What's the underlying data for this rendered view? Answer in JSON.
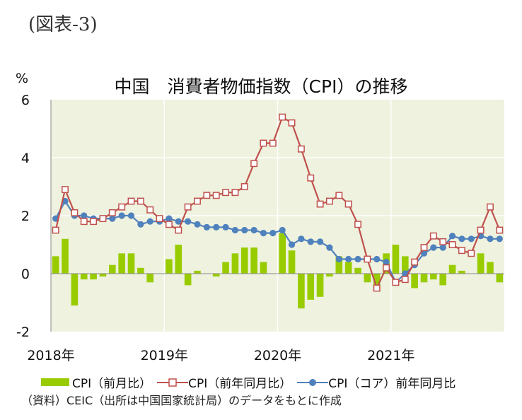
{
  "figure_label": "(図表-3)",
  "unit_label": "%",
  "legend": {
    "bar": "CPI（前月比）",
    "line1": "CPI（前年同月比）",
    "line2": "CPI（コア）前年同月比"
  },
  "source": "（資料）CEIC（出所は中国国家統計局）のデータをもとに作成",
  "colors": {
    "plot_bg": "#eef2de",
    "bar": "#99cc00",
    "line_headline": "#c0504d",
    "line_core": "#4f81bd",
    "grid": "#ffffff"
  },
  "chart_data": {
    "type": "bar+line",
    "title": "中国　消費者物価指数（CPI）の推移",
    "ylim": [
      -2,
      6
    ],
    "yticks": [
      "-2",
      "0",
      "2",
      "4",
      "6"
    ],
    "year_labels": [
      "2018年",
      "2019年",
      "2020年",
      "2021年"
    ],
    "months": [
      "2018-01",
      "2018-02",
      "2018-03",
      "2018-04",
      "2018-05",
      "2018-06",
      "2018-07",
      "2018-08",
      "2018-09",
      "2018-10",
      "2018-11",
      "2018-12",
      "2019-01",
      "2019-02",
      "2019-03",
      "2019-04",
      "2019-05",
      "2019-06",
      "2019-07",
      "2019-08",
      "2019-09",
      "2019-10",
      "2019-11",
      "2019-12",
      "2020-01",
      "2020-02",
      "2020-03",
      "2020-04",
      "2020-05",
      "2020-06",
      "2020-07",
      "2020-08",
      "2020-09",
      "2020-10",
      "2020-11",
      "2020-12",
      "2021-01",
      "2021-02",
      "2021-03",
      "2021-04",
      "2021-05",
      "2021-06",
      "2021-07",
      "2021-08",
      "2021-09",
      "2021-10",
      "2021-11",
      "2021-12"
    ],
    "series": [
      {
        "name": "CPI（前月比）",
        "kind": "bar",
        "values": [
          0.6,
          1.2,
          -1.1,
          -0.2,
          -0.2,
          -0.1,
          0.3,
          0.7,
          0.7,
          0.2,
          -0.3,
          0.0,
          0.5,
          1.0,
          -0.4,
          0.1,
          0.0,
          -0.1,
          0.4,
          0.7,
          0.9,
          0.9,
          0.4,
          0.0,
          1.4,
          0.8,
          -1.2,
          -0.9,
          -0.8,
          -0.1,
          0.6,
          0.4,
          0.2,
          -0.3,
          -0.6,
          0.7,
          1.0,
          0.6,
          -0.5,
          -0.3,
          -0.2,
          -0.4,
          0.3,
          0.1,
          0.0,
          0.7,
          0.4,
          -0.3
        ]
      },
      {
        "name": "CPI（前年同月比）",
        "kind": "line",
        "values": [
          1.5,
          2.9,
          2.1,
          1.8,
          1.8,
          1.9,
          2.1,
          2.3,
          2.5,
          2.5,
          2.2,
          1.9,
          1.7,
          1.5,
          2.3,
          2.5,
          2.7,
          2.7,
          2.8,
          2.8,
          3.0,
          3.8,
          4.5,
          4.5,
          5.4,
          5.2,
          4.3,
          3.3,
          2.4,
          2.5,
          2.7,
          2.4,
          1.7,
          0.5,
          -0.5,
          0.2,
          -0.3,
          -0.2,
          0.4,
          0.9,
          1.3,
          1.1,
          1.0,
          0.8,
          0.7,
          1.5,
          2.3,
          1.5
        ]
      },
      {
        "name": "CPI（コア）前年同月比",
        "kind": "line",
        "values": [
          1.9,
          2.5,
          2.0,
          2.0,
          1.9,
          1.9,
          1.9,
          2.0,
          2.0,
          1.7,
          1.8,
          1.8,
          1.9,
          1.8,
          1.8,
          1.7,
          1.6,
          1.6,
          1.6,
          1.5,
          1.5,
          1.5,
          1.4,
          1.4,
          1.5,
          1.0,
          1.2,
          1.1,
          1.1,
          0.9,
          0.5,
          0.5,
          0.5,
          0.5,
          0.5,
          0.4,
          -0.3,
          0.0,
          0.3,
          0.7,
          0.9,
          0.9,
          1.3,
          1.2,
          1.2,
          1.3,
          1.2,
          1.2
        ]
      }
    ]
  }
}
